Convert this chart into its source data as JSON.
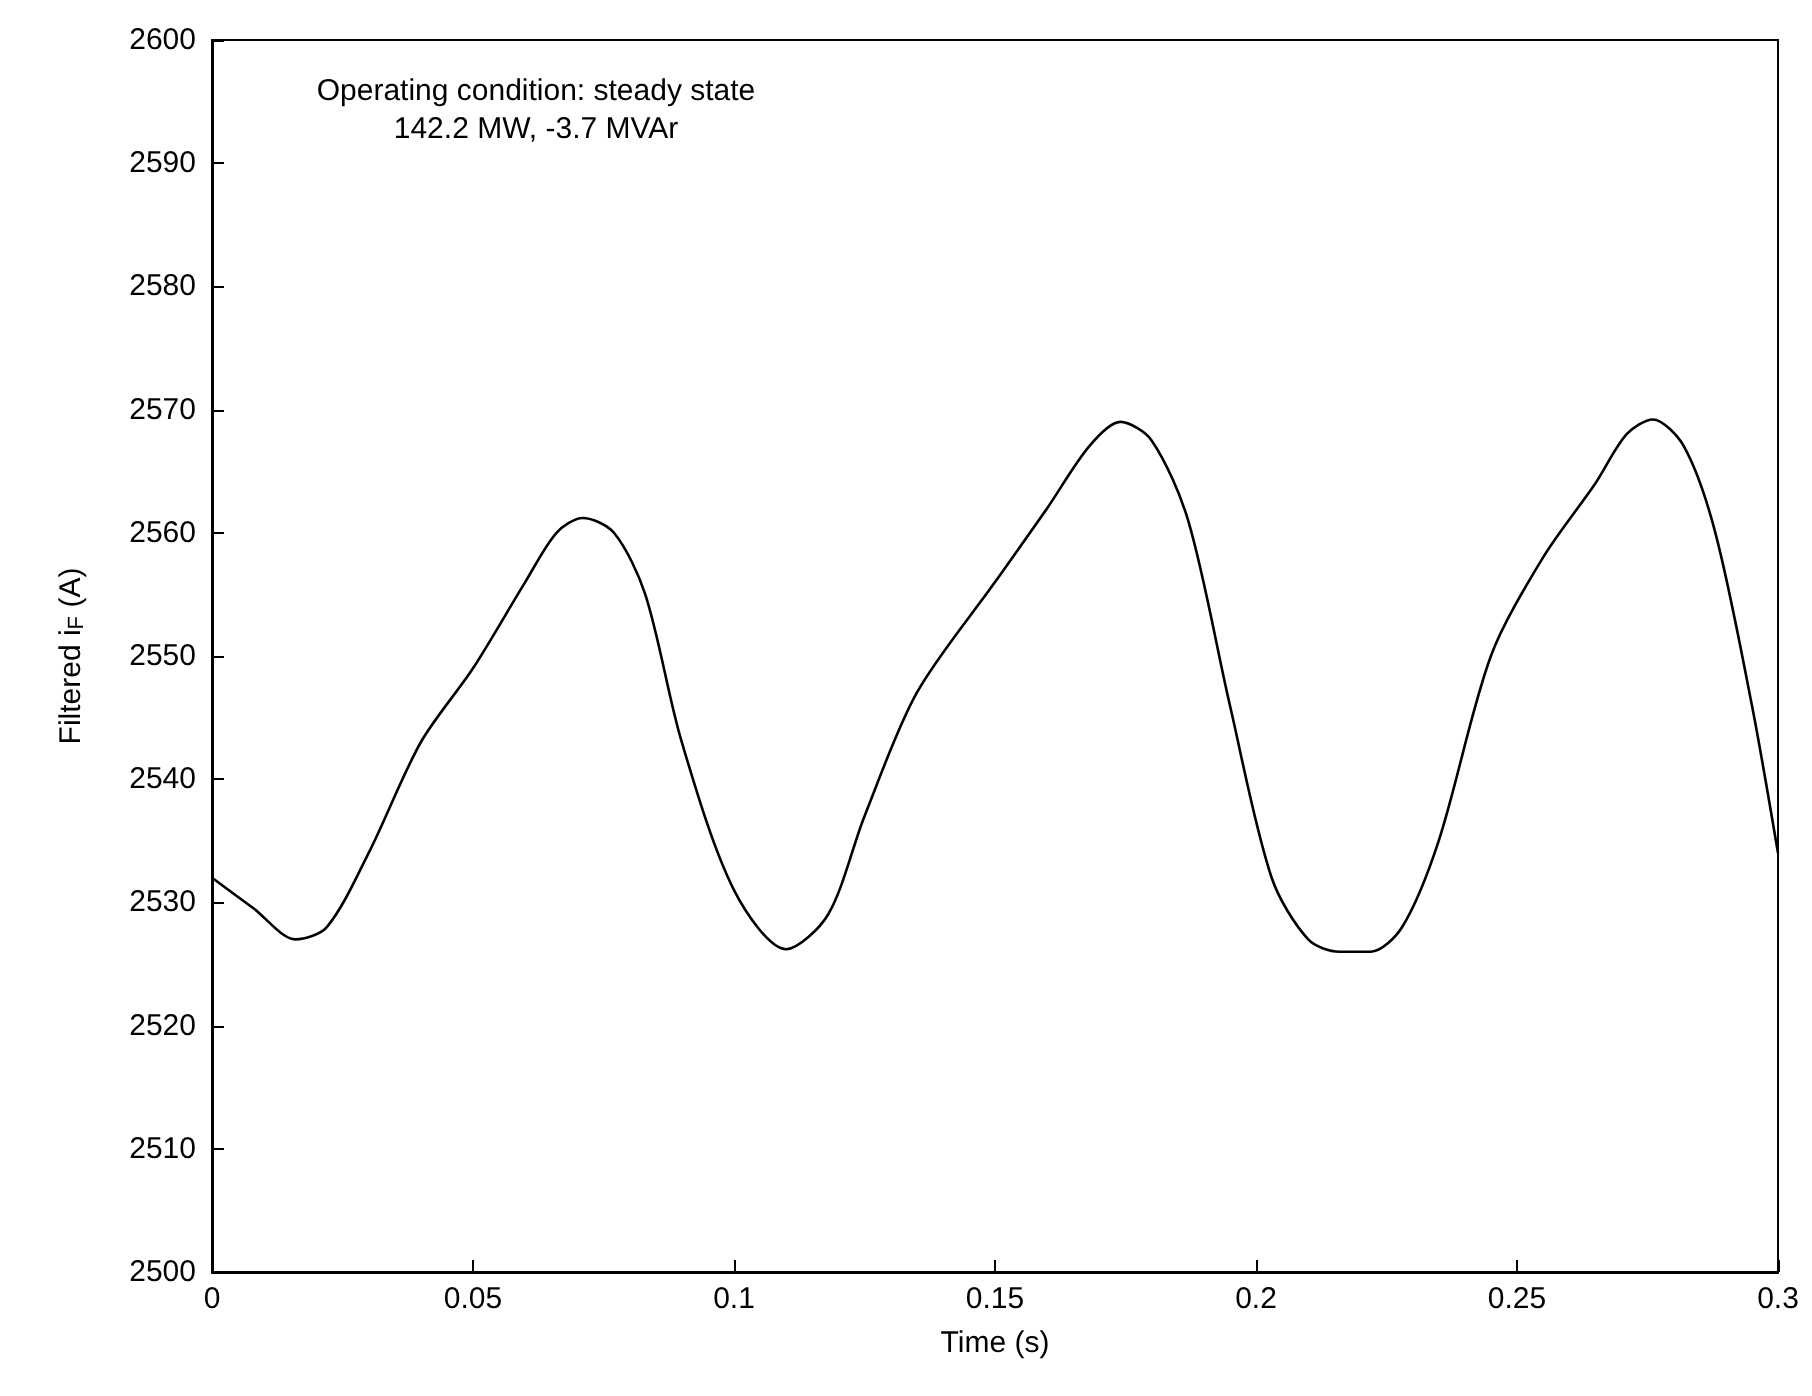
{
  "chart_data": {
    "type": "line",
    "xlabel": "Time (s)",
    "ylabel": "Filtered i$_{F}$ (A)",
    "annotations": [
      "Operating condition: steady state",
      "142.2 MW, -3.7 MVAr"
    ],
    "x": [
      0,
      0.008,
      0.016,
      0.022,
      0.03,
      0.04,
      0.05,
      0.06,
      0.066,
      0.071,
      0.077,
      0.083,
      0.09,
      0.1,
      0.11,
      0.118,
      0.125,
      0.135,
      0.15,
      0.16,
      0.168,
      0.174,
      0.18,
      0.187,
      0.195,
      0.203,
      0.21,
      0.216,
      0.222,
      0.228,
      0.235,
      0.245,
      0.255,
      0.265,
      0.271,
      0.276,
      0.282,
      0.288,
      0.295,
      0.3
    ],
    "series": [
      {
        "color": "#000000",
        "values": [
          2532,
          2529.5,
          2527,
          2528,
          2534,
          2543,
          2549,
          2556,
          2560,
          2561.2,
          2560,
          2555,
          2543,
          2531,
          2526.2,
          2529,
          2537,
          2547,
          2556,
          2562,
          2567,
          2569,
          2567.5,
          2561,
          2546,
          2532,
          2527,
          2526,
          2526,
          2528,
          2535,
          2550,
          2558,
          2564,
          2568,
          2569.2,
          2567,
          2560,
          2546,
          2534
        ]
      }
    ],
    "xlim": [
      0,
      0.3
    ],
    "xticks": [
      0,
      0.05,
      0.1,
      0.15,
      0.2,
      0.25,
      0.3
    ],
    "ylim": [
      2500,
      2600
    ],
    "yticks": [
      2500,
      2510,
      2520,
      2530,
      2540,
      2550,
      2560,
      2570,
      2580,
      2590,
      2600
    ],
    "grid": false,
    "marker": "none",
    "line_style": "solid"
  }
}
